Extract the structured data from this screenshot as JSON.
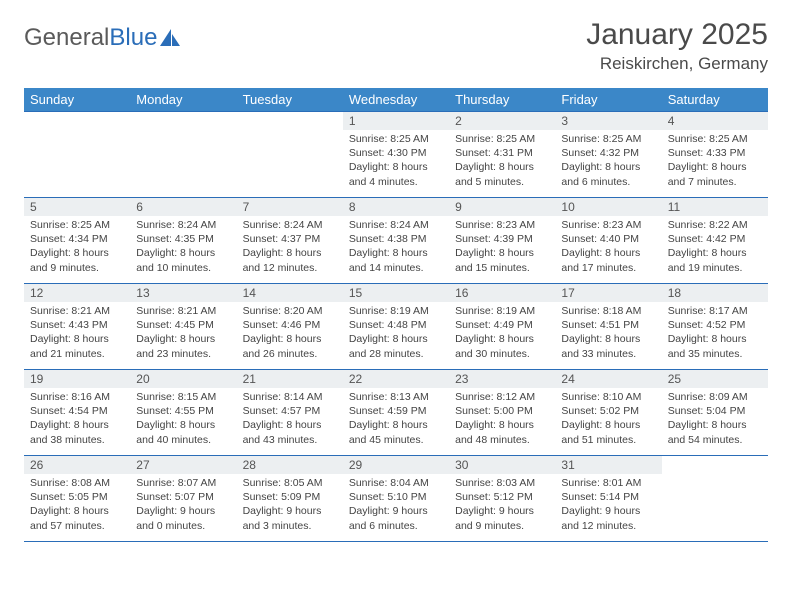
{
  "logo": {
    "word1": "General",
    "word2": "Blue"
  },
  "title": "January 2025",
  "location": "Reiskirchen, Germany",
  "colors": {
    "header_bg": "#3b87c8",
    "header_text": "#ffffff",
    "rule": "#2a6db8",
    "daynum_bg": "#eceff1",
    "text": "#444444",
    "logo_gray": "#5a5a5a",
    "logo_blue": "#2a6db8"
  },
  "typography": {
    "title_fontsize": 30,
    "location_fontsize": 17,
    "dayheader_fontsize": 13,
    "daynum_fontsize": 12,
    "body_fontsize": 10.5
  },
  "day_headers": [
    "Sunday",
    "Monday",
    "Tuesday",
    "Wednesday",
    "Thursday",
    "Friday",
    "Saturday"
  ],
  "weeks": [
    [
      null,
      null,
      null,
      {
        "n": "1",
        "sr": "Sunrise: 8:25 AM",
        "ss": "Sunset: 4:30 PM",
        "dl": "Daylight: 8 hours and 4 minutes."
      },
      {
        "n": "2",
        "sr": "Sunrise: 8:25 AM",
        "ss": "Sunset: 4:31 PM",
        "dl": "Daylight: 8 hours and 5 minutes."
      },
      {
        "n": "3",
        "sr": "Sunrise: 8:25 AM",
        "ss": "Sunset: 4:32 PM",
        "dl": "Daylight: 8 hours and 6 minutes."
      },
      {
        "n": "4",
        "sr": "Sunrise: 8:25 AM",
        "ss": "Sunset: 4:33 PM",
        "dl": "Daylight: 8 hours and 7 minutes."
      }
    ],
    [
      {
        "n": "5",
        "sr": "Sunrise: 8:25 AM",
        "ss": "Sunset: 4:34 PM",
        "dl": "Daylight: 8 hours and 9 minutes."
      },
      {
        "n": "6",
        "sr": "Sunrise: 8:24 AM",
        "ss": "Sunset: 4:35 PM",
        "dl": "Daylight: 8 hours and 10 minutes."
      },
      {
        "n": "7",
        "sr": "Sunrise: 8:24 AM",
        "ss": "Sunset: 4:37 PM",
        "dl": "Daylight: 8 hours and 12 minutes."
      },
      {
        "n": "8",
        "sr": "Sunrise: 8:24 AM",
        "ss": "Sunset: 4:38 PM",
        "dl": "Daylight: 8 hours and 14 minutes."
      },
      {
        "n": "9",
        "sr": "Sunrise: 8:23 AM",
        "ss": "Sunset: 4:39 PM",
        "dl": "Daylight: 8 hours and 15 minutes."
      },
      {
        "n": "10",
        "sr": "Sunrise: 8:23 AM",
        "ss": "Sunset: 4:40 PM",
        "dl": "Daylight: 8 hours and 17 minutes."
      },
      {
        "n": "11",
        "sr": "Sunrise: 8:22 AM",
        "ss": "Sunset: 4:42 PM",
        "dl": "Daylight: 8 hours and 19 minutes."
      }
    ],
    [
      {
        "n": "12",
        "sr": "Sunrise: 8:21 AM",
        "ss": "Sunset: 4:43 PM",
        "dl": "Daylight: 8 hours and 21 minutes."
      },
      {
        "n": "13",
        "sr": "Sunrise: 8:21 AM",
        "ss": "Sunset: 4:45 PM",
        "dl": "Daylight: 8 hours and 23 minutes."
      },
      {
        "n": "14",
        "sr": "Sunrise: 8:20 AM",
        "ss": "Sunset: 4:46 PM",
        "dl": "Daylight: 8 hours and 26 minutes."
      },
      {
        "n": "15",
        "sr": "Sunrise: 8:19 AM",
        "ss": "Sunset: 4:48 PM",
        "dl": "Daylight: 8 hours and 28 minutes."
      },
      {
        "n": "16",
        "sr": "Sunrise: 8:19 AM",
        "ss": "Sunset: 4:49 PM",
        "dl": "Daylight: 8 hours and 30 minutes."
      },
      {
        "n": "17",
        "sr": "Sunrise: 8:18 AM",
        "ss": "Sunset: 4:51 PM",
        "dl": "Daylight: 8 hours and 33 minutes."
      },
      {
        "n": "18",
        "sr": "Sunrise: 8:17 AM",
        "ss": "Sunset: 4:52 PM",
        "dl": "Daylight: 8 hours and 35 minutes."
      }
    ],
    [
      {
        "n": "19",
        "sr": "Sunrise: 8:16 AM",
        "ss": "Sunset: 4:54 PM",
        "dl": "Daylight: 8 hours and 38 minutes."
      },
      {
        "n": "20",
        "sr": "Sunrise: 8:15 AM",
        "ss": "Sunset: 4:55 PM",
        "dl": "Daylight: 8 hours and 40 minutes."
      },
      {
        "n": "21",
        "sr": "Sunrise: 8:14 AM",
        "ss": "Sunset: 4:57 PM",
        "dl": "Daylight: 8 hours and 43 minutes."
      },
      {
        "n": "22",
        "sr": "Sunrise: 8:13 AM",
        "ss": "Sunset: 4:59 PM",
        "dl": "Daylight: 8 hours and 45 minutes."
      },
      {
        "n": "23",
        "sr": "Sunrise: 8:12 AM",
        "ss": "Sunset: 5:00 PM",
        "dl": "Daylight: 8 hours and 48 minutes."
      },
      {
        "n": "24",
        "sr": "Sunrise: 8:10 AM",
        "ss": "Sunset: 5:02 PM",
        "dl": "Daylight: 8 hours and 51 minutes."
      },
      {
        "n": "25",
        "sr": "Sunrise: 8:09 AM",
        "ss": "Sunset: 5:04 PM",
        "dl": "Daylight: 8 hours and 54 minutes."
      }
    ],
    [
      {
        "n": "26",
        "sr": "Sunrise: 8:08 AM",
        "ss": "Sunset: 5:05 PM",
        "dl": "Daylight: 8 hours and 57 minutes."
      },
      {
        "n": "27",
        "sr": "Sunrise: 8:07 AM",
        "ss": "Sunset: 5:07 PM",
        "dl": "Daylight: 9 hours and 0 minutes."
      },
      {
        "n": "28",
        "sr": "Sunrise: 8:05 AM",
        "ss": "Sunset: 5:09 PM",
        "dl": "Daylight: 9 hours and 3 minutes."
      },
      {
        "n": "29",
        "sr": "Sunrise: 8:04 AM",
        "ss": "Sunset: 5:10 PM",
        "dl": "Daylight: 9 hours and 6 minutes."
      },
      {
        "n": "30",
        "sr": "Sunrise: 8:03 AM",
        "ss": "Sunset: 5:12 PM",
        "dl": "Daylight: 9 hours and 9 minutes."
      },
      {
        "n": "31",
        "sr": "Sunrise: 8:01 AM",
        "ss": "Sunset: 5:14 PM",
        "dl": "Daylight: 9 hours and 12 minutes."
      },
      null
    ]
  ]
}
